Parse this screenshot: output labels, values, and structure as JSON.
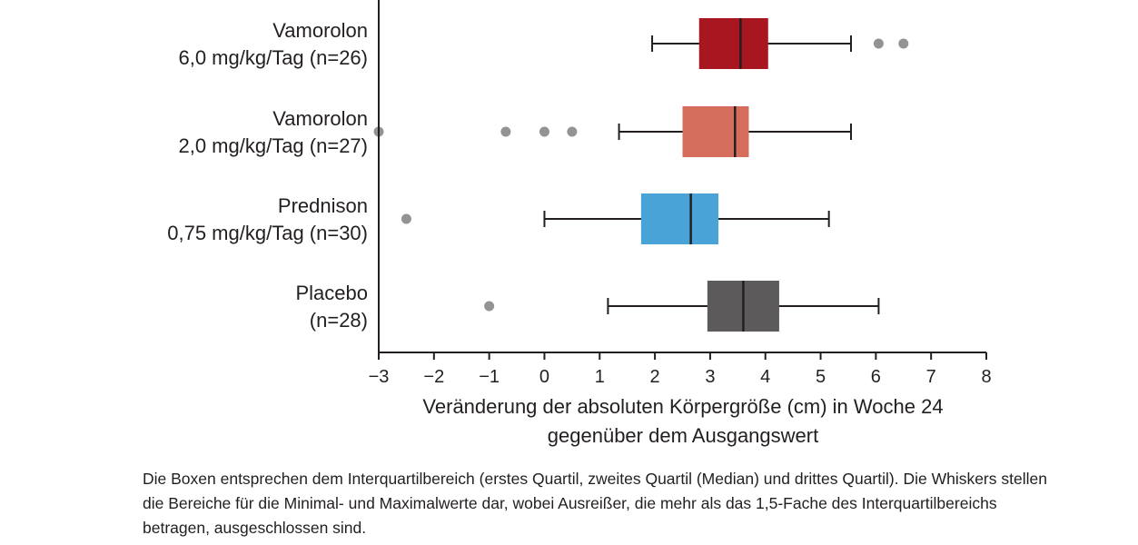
{
  "chart_data": {
    "type": "boxplot",
    "orientation": "horizontal",
    "title": "",
    "xlabel": [
      "Veränderung der absoluten Körpergröße (cm) in Woche 24",
      "gegenüber dem Ausgangswert"
    ],
    "xlim": [
      -3,
      8
    ],
    "xticks": [
      -3,
      -2,
      -1,
      0,
      1,
      2,
      3,
      4,
      5,
      6,
      7,
      8
    ],
    "xtick_labels": [
      "−3",
      "−2",
      "−1",
      "0",
      "1",
      "2",
      "3",
      "4",
      "5",
      "6",
      "7",
      "8"
    ],
    "grid": false,
    "series": [
      {
        "label_lines": [
          "Vamorolon",
          "6,0 mg/kg/Tag (n=26)"
        ],
        "color": "#a8171f",
        "whisker_low": 1.95,
        "q1": 2.8,
        "median": 3.55,
        "q3": 4.05,
        "whisker_high": 5.55,
        "outliers": [
          6.05,
          6.5
        ]
      },
      {
        "label_lines": [
          "Vamorolon",
          "2,0 mg/kg/Tag (n=27)"
        ],
        "color": "#d66e5e",
        "whisker_low": 1.35,
        "q1": 2.5,
        "median": 3.45,
        "q3": 3.7,
        "whisker_high": 5.55,
        "outliers": [
          -3.0,
          -0.7,
          0.0,
          0.5
        ]
      },
      {
        "label_lines": [
          "Prednison",
          "0,75 mg/kg/Tag (n=30)"
        ],
        "color": "#4aa3d6",
        "whisker_low": 0.0,
        "q1": 1.75,
        "median": 2.65,
        "q3": 3.15,
        "whisker_high": 5.15,
        "outliers": [
          -2.5
        ]
      },
      {
        "label_lines": [
          "Placebo",
          "(n=28)"
        ],
        "color": "#5c5a5b",
        "whisker_low": 1.15,
        "q1": 2.95,
        "median": 3.6,
        "q3": 4.25,
        "whisker_high": 6.05,
        "outliers": [
          -1.0
        ]
      }
    ],
    "outlier_color": "#939393"
  },
  "caption": "Die Boxen entsprechen dem Interquartilbereich (erstes Quartil, zweites Quartil (Median) und drittes Quartil). Die Whiskers stellen die Bereiche für die Minimal- und Maximalwerte dar, wobei Ausreißer, die mehr als das 1,5-Fache des Interquartilbereichs betragen, ausgeschlossen sind."
}
